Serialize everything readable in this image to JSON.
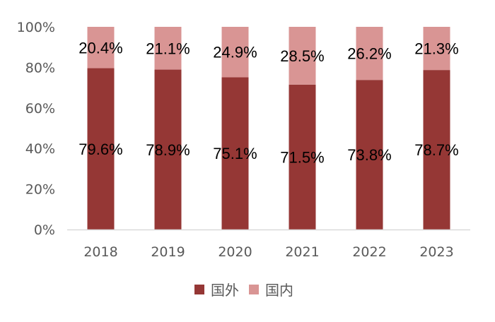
{
  "chart_data": {
    "type": "bar",
    "stacked": true,
    "categories": [
      "2018",
      "2019",
      "2020",
      "2021",
      "2022",
      "2023"
    ],
    "series": [
      {
        "name": "国外",
        "color": "#953735",
        "values": [
          79.6,
          78.9,
          75.1,
          71.5,
          73.8,
          78.7
        ],
        "labels": [
          "79.6%",
          "78.9%",
          "75.1%",
          "71.5%",
          "73.8%",
          "78.7%"
        ]
      },
      {
        "name": "国内",
        "color": "#D99594",
        "values": [
          20.4,
          21.1,
          24.9,
          28.5,
          26.2,
          21.3
        ],
        "labels": [
          "20.4%",
          "21.1%",
          "24.9%",
          "28.5%",
          "26.2%",
          "21.3%"
        ]
      }
    ],
    "ylim": [
      0,
      100
    ],
    "yticks": [
      "0%",
      "20%",
      "40%",
      "60%",
      "80%",
      "100%"
    ],
    "title": "",
    "xlabel": "",
    "ylabel": "",
    "grid": false,
    "legend_position": "bottom"
  }
}
